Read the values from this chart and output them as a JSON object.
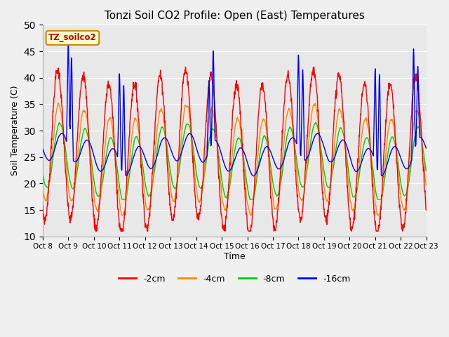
{
  "title": "Tonzi Soil CO2 Profile: Open (East) Temperatures",
  "xlabel": "Time",
  "ylabel": "Soil Temperature (C)",
  "ylim": [
    10,
    50
  ],
  "yticks": [
    10,
    15,
    20,
    25,
    30,
    35,
    40,
    45,
    50
  ],
  "xtick_labels": [
    "Oct 8",
    "Oct 9",
    "Oct 10",
    "Oct 11",
    "Oct 12",
    "Oct 13",
    "Oct 14",
    "Oct 15",
    "Oct 16",
    "Oct 17",
    "Oct 18",
    "Oct 19",
    "Oct 20",
    "Oct 21",
    "Oct 22",
    "Oct 23"
  ],
  "legend_label": "TZ_soilco2",
  "series_labels": [
    "-2cm",
    "-4cm",
    "-8cm",
    "-16cm"
  ],
  "series_colors": [
    "#ff0000",
    "#ff8800",
    "#00cc00",
    "#0000ff"
  ],
  "title_fontsize": 11,
  "n_days": 15,
  "points_per_hour": 4,
  "fig_width": 6.4,
  "fig_height": 4.8,
  "dpi": 100
}
